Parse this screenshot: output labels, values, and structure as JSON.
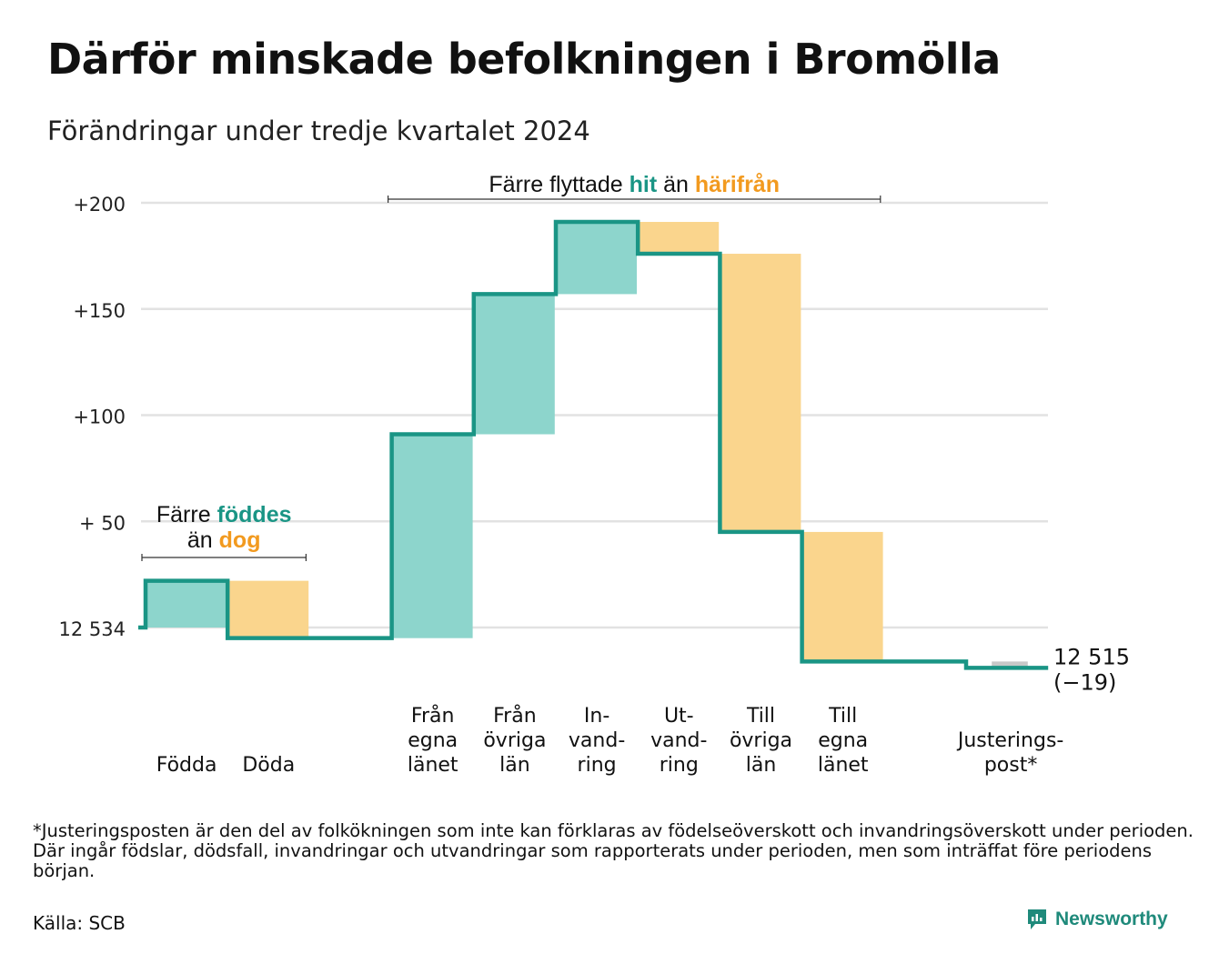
{
  "title": "Därför minskade befolkningen i Bromölla",
  "subtitle": "Förändringar under tredje kvartalet 2024",
  "footnote": "*Justeringsposten är den del av folkökningen som inte kan förklaras av födelseöverskott och invandringsöverskott under perioden. Där ingår födslar, dödsfall, invandringar och utvandringar som rapporterats under perioden, men som inträffat före periodens början.",
  "source": "Källa: SCB",
  "brand": "Newsworthy",
  "colors": {
    "increase": "#8dd5cc",
    "decrease": "#fad58d",
    "line": "#1a9585",
    "adjustment": "#c8c8c8",
    "grid": "#e2e2e2",
    "teal_text": "#1a9585",
    "orange_text": "#f29a1f"
  },
  "chart_data": {
    "type": "waterfall",
    "start_population": 12534,
    "end_population": 12515,
    "end_label": "12 515",
    "end_change_label": "(−19)",
    "ylim": [
      -30,
      205
    ],
    "yticks": [
      {
        "value": 0,
        "label": "12 534"
      },
      {
        "value": 50,
        "label": "+ 50"
      },
      {
        "value": 100,
        "label": "+100"
      },
      {
        "value": 150,
        "label": "+150"
      },
      {
        "value": 200,
        "label": "+200"
      }
    ],
    "steps": [
      {
        "label_lines": [
          "Födda"
        ],
        "change": 22,
        "kind": "increase"
      },
      {
        "label_lines": [
          "Döda"
        ],
        "change": -27,
        "kind": "decrease"
      },
      {
        "label_lines": [
          ""
        ],
        "change": 0,
        "kind": "gap"
      },
      {
        "label_lines": [
          "Från",
          "egna",
          "länet"
        ],
        "change": 96,
        "kind": "increase"
      },
      {
        "label_lines": [
          "Från",
          "övriga",
          "län"
        ],
        "change": 66,
        "kind": "increase"
      },
      {
        "label_lines": [
          "In-",
          "vand-",
          "ring"
        ],
        "change": 34,
        "kind": "increase"
      },
      {
        "label_lines": [
          "Ut-",
          "vand-",
          "ring"
        ],
        "change": -15,
        "kind": "decrease"
      },
      {
        "label_lines": [
          "Till",
          "övriga",
          "län"
        ],
        "change": -131,
        "kind": "decrease"
      },
      {
        "label_lines": [
          "Till",
          "egna",
          "länet"
        ],
        "change": -61,
        "kind": "decrease"
      },
      {
        "label_lines": [
          ""
        ],
        "change": 0,
        "kind": "gap"
      },
      {
        "label_lines": [
          "Justerings-",
          "post*"
        ],
        "change": -3,
        "kind": "adjustment"
      }
    ],
    "annotations": [
      {
        "id": "births",
        "line1": [
          "Färre ",
          "föddes"
        ],
        "line2": [
          "än ",
          "dog"
        ],
        "from_step": 0,
        "to_step": 1
      },
      {
        "id": "moves",
        "line1": [
          "Färre flyttade ",
          "hit",
          " än ",
          "härifrån"
        ],
        "from_step": 3,
        "to_step": 8
      }
    ]
  }
}
